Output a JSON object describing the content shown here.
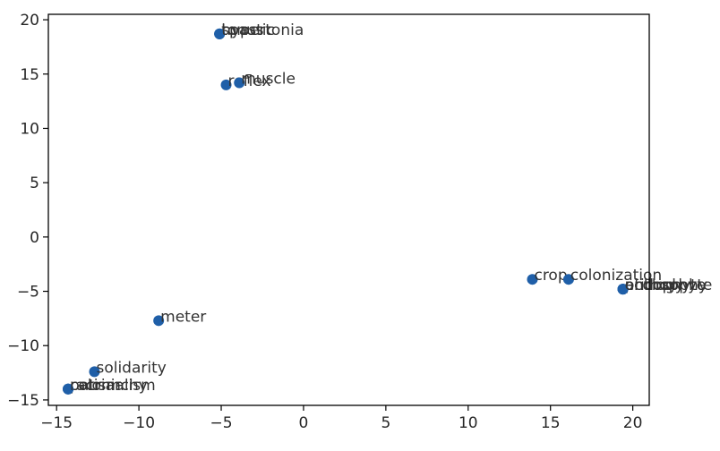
{
  "chart_data": {
    "type": "scatter",
    "title": "",
    "xlabel": "",
    "ylabel": "",
    "xlim": [
      -15.5,
      21
    ],
    "ylim": [
      -15.5,
      20.5
    ],
    "xticks": [
      -15,
      -10,
      -5,
      0,
      5,
      10,
      15,
      20
    ],
    "yticks": [
      -15,
      -10,
      -5,
      0,
      5,
      10,
      15,
      20
    ],
    "xtick_labels": [
      "−15",
      "−10",
      "−5",
      "0",
      "5",
      "10",
      "15",
      "20"
    ],
    "ytick_labels": [
      "−15",
      "−10",
      "−5",
      "0",
      "5",
      "10",
      "15",
      "20"
    ],
    "grid": false,
    "marker_color": "#1f5fa8",
    "points": [
      {
        "x": -5.1,
        "y": 18.7,
        "label": "hypertonia"
      },
      {
        "x": -5.1,
        "y": 18.7,
        "label": "spastic"
      },
      {
        "x": -5.1,
        "y": 18.7,
        "label": "tonus"
      },
      {
        "x": -4.7,
        "y": 14.0,
        "label": "reflex"
      },
      {
        "x": -3.9,
        "y": 14.2,
        "label": "muscle"
      },
      {
        "x": -8.8,
        "y": -7.7,
        "label": "meter"
      },
      {
        "x": -12.7,
        "y": -12.4,
        "label": "solidarity"
      },
      {
        "x": -14.3,
        "y": -14.0,
        "label": "colonialism"
      },
      {
        "x": -14.3,
        "y": -14.0,
        "label": "patriarchy"
      },
      {
        "x": -14.3,
        "y": -14.0,
        "label": "racism"
      },
      {
        "x": 13.9,
        "y": -3.9,
        "label": "crop"
      },
      {
        "x": 16.1,
        "y": -3.9,
        "label": "colonization"
      },
      {
        "x": 19.4,
        "y": -4.8,
        "label": "ericophyte"
      },
      {
        "x": 19.4,
        "y": -4.8,
        "label": "anthophyte"
      },
      {
        "x": 19.4,
        "y": -4.8,
        "label": "philosophy"
      },
      {
        "x": 19.4,
        "y": -4.8,
        "label": "ecology"
      }
    ]
  }
}
